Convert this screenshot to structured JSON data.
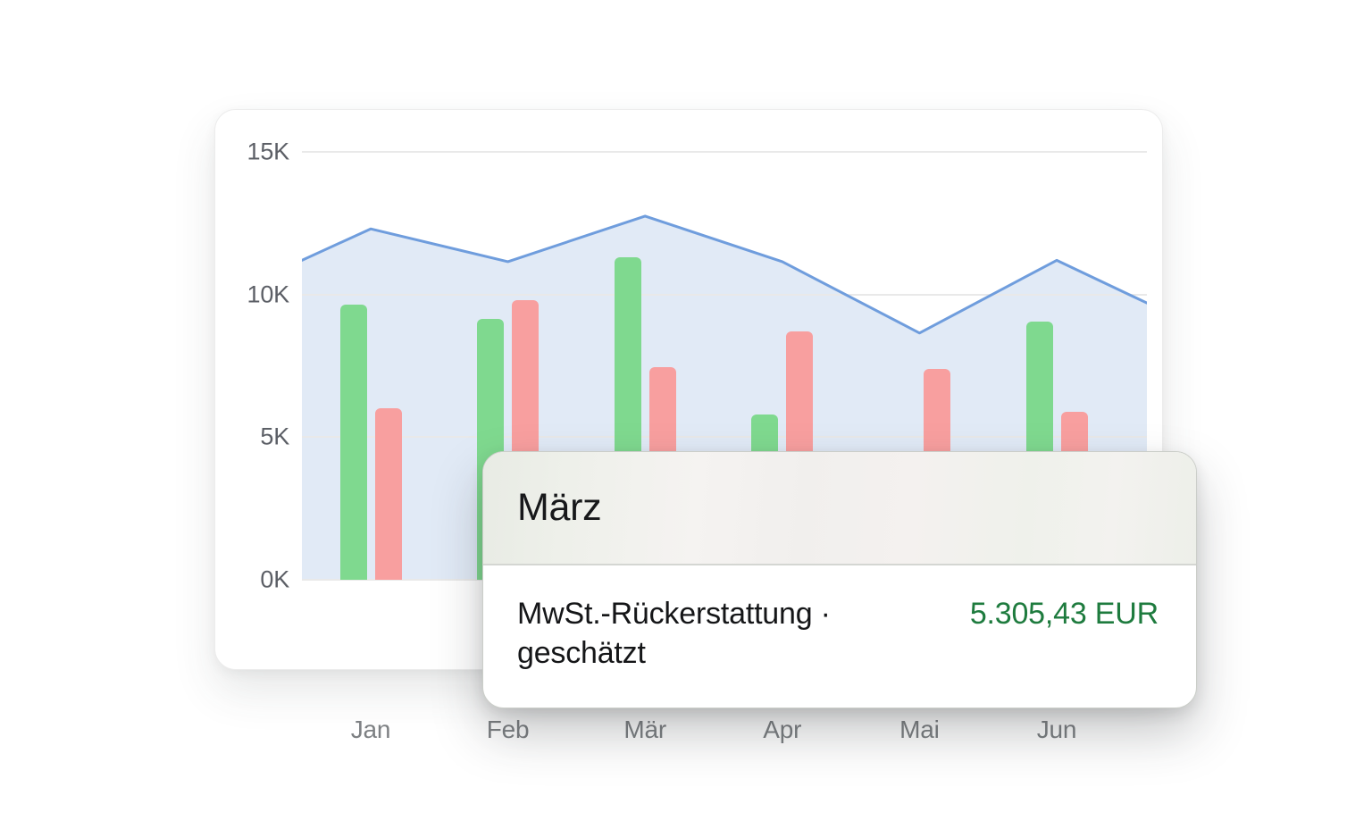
{
  "page": {
    "background": "#ffffff"
  },
  "colors": {
    "card_bg": "#ffffff",
    "grid": "#e9e9e9",
    "ytick_text": "#5c5f66",
    "xtick_text": "#7d8083",
    "bar_green": "#7fd98f",
    "bar_red": "#f89f9f",
    "area_fill": "#e1eaf6",
    "area_line": "#6f9ddd",
    "tooltip_value_green": "#1e7b3e",
    "tooltip_title_text": "#17181a",
    "tooltip_label_text": "#151618"
  },
  "chart_data": {
    "type": "bar",
    "title": "",
    "categories": [
      "Jan",
      "Feb",
      "Mär",
      "Apr",
      "Mai",
      "Jun"
    ],
    "series": [
      {
        "name": "green",
        "color": "#7fd98f",
        "values": [
          9650,
          9150,
          11300,
          5800,
          4200,
          9050
        ]
      },
      {
        "name": "red",
        "color": "#f89f9f",
        "values": [
          6000,
          9800,
          7450,
          8700,
          7400,
          5900
        ]
      }
    ],
    "area_overlay": {
      "type": "area",
      "line_color": "#6f9ddd",
      "fill_color": "#e1eaf6",
      "values": [
        12300,
        11150,
        12750,
        11150,
        8650,
        11200
      ],
      "edge_left_value": 11200,
      "edge_right_value": 9700
    },
    "ylim": [
      0,
      15000
    ],
    "yticks": [
      "0K",
      "5K",
      "10K",
      "15K"
    ],
    "grid": "horizontal",
    "legend": "none",
    "visible_x_tick_label": "Jan",
    "hidden_x_tick_labels_covered_by_tooltip": [
      "Feb",
      "Mär",
      "Apr",
      "Mai",
      "Jun"
    ]
  },
  "tooltip": {
    "title": "März",
    "row_label": "MwSt.-Rückerstattung · geschätzt",
    "row_value": "5.305,43 EUR"
  }
}
